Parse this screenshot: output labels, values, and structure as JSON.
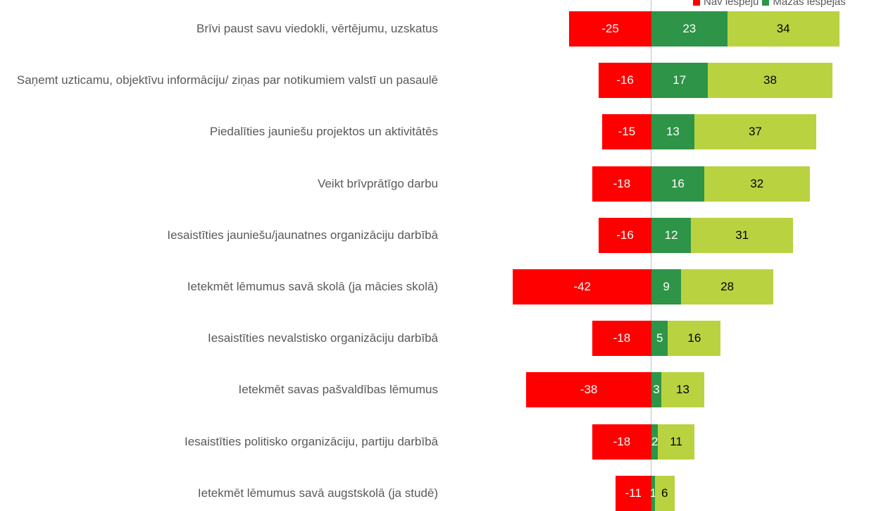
{
  "chart_data": {
    "type": "diverging-bar",
    "categories": [
      "Brīvi paust savu viedokli, vērtējumu, uzskatus",
      "Saņemt uzticamu, objektīvu informāciju/ ziņas par notikumiem valstī un pasaulē",
      "Piedalīties jauniešu projektos un aktivitātēs",
      "Veikt brīvprātīgo darbu",
      "Iesaistīties jauniešu/jaunatnes organizāciju darbībā",
      "Ietekmēt lēmumus savā skolā (ja mācies skolā)",
      "Iesaistīties nevalstisko organizāciju darbībā",
      "Ietekmēt savas pašvaldības lēmumus",
      "Iesaistīties politisko organizāciju, partiju darbībā",
      "Ietekmēt lēmumus savā augstskolā (ja studē)"
    ],
    "series": [
      {
        "name": "Nav iespēju",
        "color": "#ff0000",
        "text_color": "#ffffff",
        "values": [
          -25,
          -16,
          -15,
          -18,
          -16,
          -42,
          -18,
          -38,
          -18,
          -11
        ]
      },
      {
        "name": "Mazas iespējas",
        "color": "#2e9447",
        "text_color": "#ffffff",
        "values": [
          23,
          17,
          13,
          16,
          12,
          9,
          5,
          3,
          2,
          1
        ]
      },
      {
        "color": "#b9d340",
        "text_color": "#000000",
        "values": [
          34,
          38,
          37,
          32,
          31,
          28,
          16,
          13,
          11,
          6
        ]
      }
    ],
    "legend": "top-right"
  }
}
